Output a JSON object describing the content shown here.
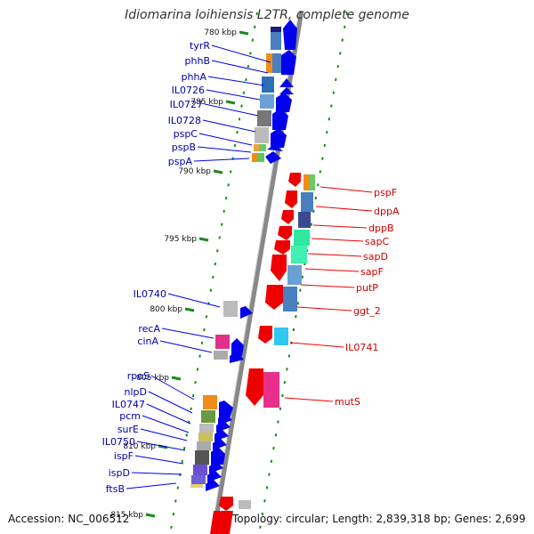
{
  "title": "Idiomarina loihiensis L2TR, complete genome",
  "accession": "Accession: NC_006512",
  "topology": "Topology: circular; Length: 2,839,318 bp; Genes: 2,699",
  "ruler_ticks": [
    "780 kbp",
    "785 kbp",
    "790 kbp",
    "795 kbp",
    "800 kbp",
    "805 kbp",
    "810 kbp",
    "815 kbp"
  ],
  "strand_colors": {
    "minus": "#0000ee",
    "plus": "#ee0000"
  },
  "minus_genes": [
    "tyrR",
    "phhB",
    "phhA",
    "IL0726",
    "IL0727",
    "IL0728",
    "pspC",
    "pspB",
    "pspA",
    "IL0740",
    "recA",
    "cinA",
    "rpoS",
    "nlpD",
    "IL0747",
    "pcm",
    "surE",
    "IL0750",
    "ispF",
    "ispD",
    "ftsB"
  ],
  "plus_genes": [
    "pspF",
    "dppA",
    "dppB",
    "sapC",
    "sapD",
    "sapF",
    "putP",
    "ggt_2",
    "IL0741",
    "mutS"
  ]
}
